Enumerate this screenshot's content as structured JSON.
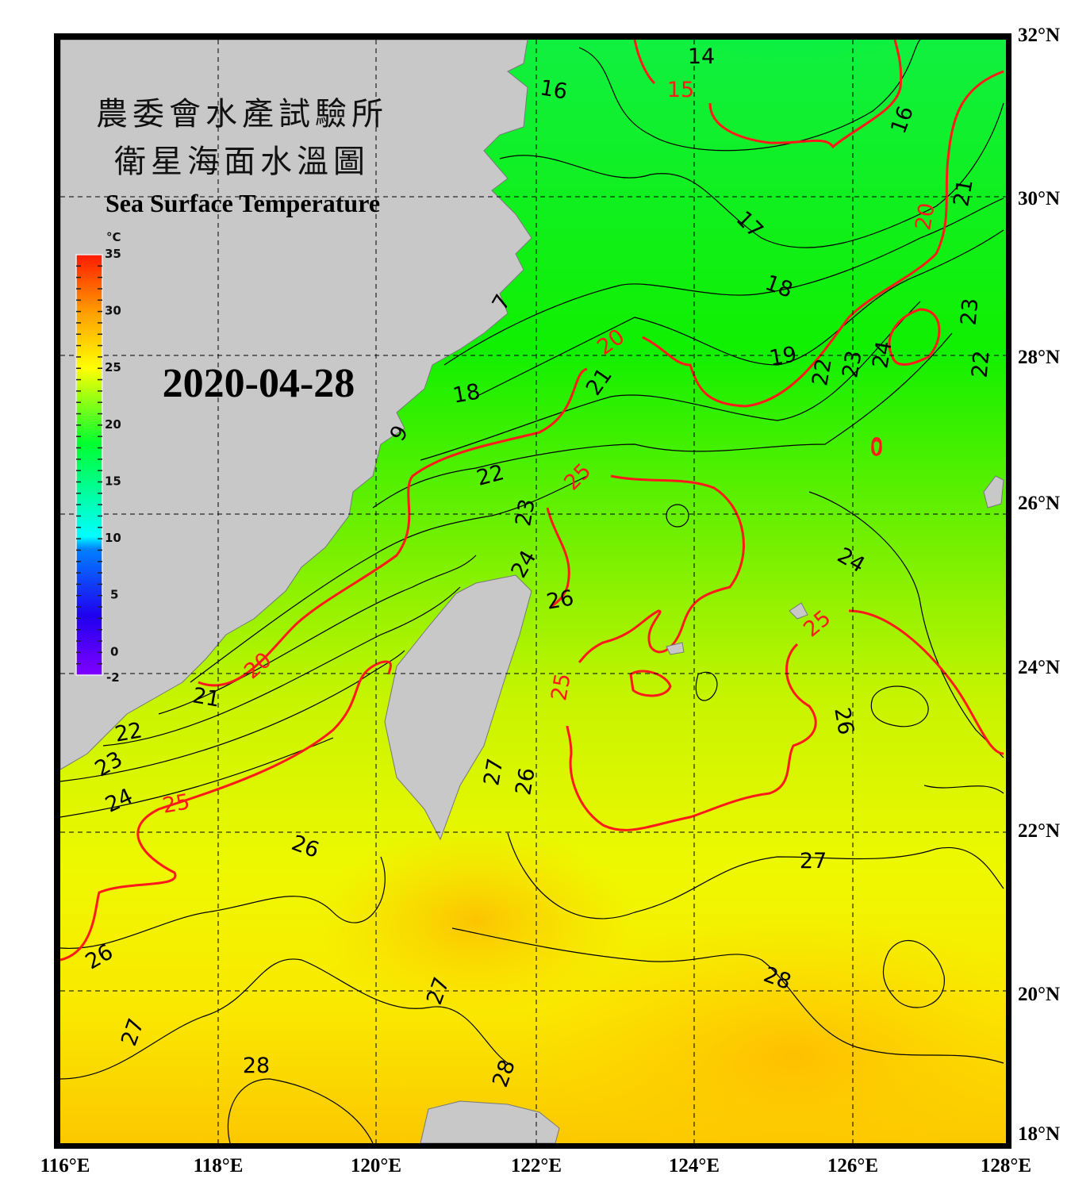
{
  "map": {
    "title_zh_line1": "農委會水產試驗所",
    "title_zh_line2": "衛星海面水溫圖",
    "title_en": "Sea Surface Temperature",
    "date": "2020-04-28",
    "lon_labels": [
      "116°E",
      "118°E",
      "120°E",
      "122°E",
      "124°E",
      "126°E",
      "128°E"
    ],
    "lat_labels": [
      "32°N",
      "30°N",
      "28°N",
      "26°N",
      "24°N",
      "22°N",
      "20°N",
      "18°N"
    ],
    "extent": {
      "lon": [
        116,
        128
      ],
      "lat": [
        18,
        32
      ]
    },
    "land_color": "#c8c8c8",
    "contour_color": "#000000",
    "major_contour_color": "#ff1a1a",
    "colorbar": {
      "unit": "°C",
      "range": [
        -2,
        35
      ],
      "tick_labels": [
        "35",
        "30",
        "25",
        "20",
        "15",
        "10",
        "5",
        "0",
        "-2"
      ],
      "colormap": [
        "#8000ff",
        "#0000ff",
        "#00ffff",
        "#00ff00",
        "#ffff00",
        "#ff8000",
        "#ff0000"
      ]
    },
    "contour_labels": [
      "14",
      "15",
      "16",
      "16",
      "17",
      "18",
      "19",
      "20",
      "20",
      "21",
      "23",
      "22",
      "22",
      "23",
      "24",
      "0",
      "18",
      "21",
      "22",
      "25",
      "23",
      "24",
      "26",
      "24",
      "25",
      "20",
      "21",
      "22",
      "23",
      "24",
      "25",
      "25",
      "26",
      "27",
      "26",
      "26",
      "27",
      "26",
      "28",
      "27",
      "27",
      "28",
      "28",
      "7",
      "9"
    ]
  }
}
